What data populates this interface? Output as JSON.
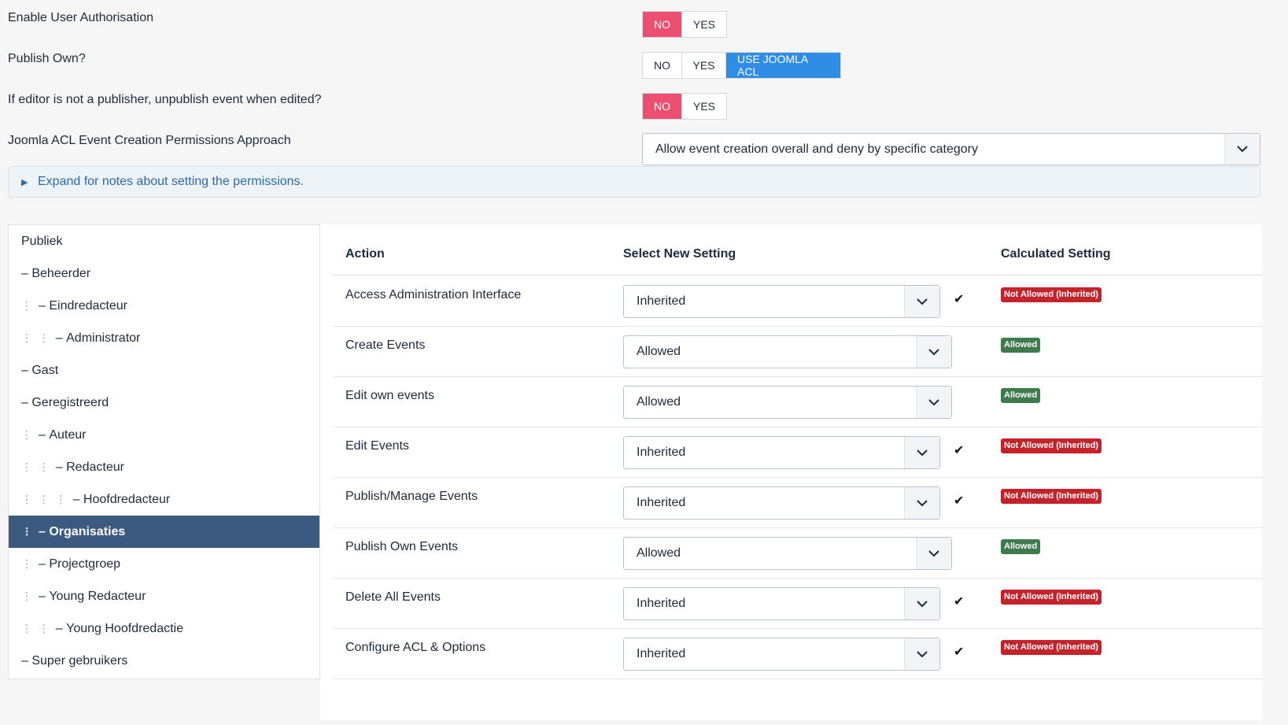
{
  "settings": {
    "enable_auth": {
      "label": "Enable User Authorisation",
      "options": [
        "NO",
        "YES"
      ],
      "selected": "NO"
    },
    "publish_own": {
      "label": "Publish Own?",
      "options": [
        "NO",
        "YES",
        "USE JOOMLA ACL"
      ],
      "selected": "USE JOOMLA ACL"
    },
    "unpublish": {
      "label": "If editor is not a publisher, unpublish event when edited?",
      "options": [
        "NO",
        "YES"
      ],
      "selected": "NO"
    },
    "acl_approach": {
      "label": "Joomla ACL Event Creation Permissions Approach",
      "value": "Allow event creation overall and deny by specific category"
    },
    "notes_link": "Expand for notes about setting the permissions."
  },
  "groups": [
    {
      "label": "Publiek",
      "prefix": "",
      "dots": ""
    },
    {
      "label": "Beheerder",
      "prefix": "– ",
      "dots": ""
    },
    {
      "label": "Eindredacteur",
      "prefix": "– ",
      "dots": "⋮"
    },
    {
      "label": "Administrator",
      "prefix": "– ",
      "dots": "⋮  ⋮"
    },
    {
      "label": "Gast",
      "prefix": "– ",
      "dots": ""
    },
    {
      "label": "Geregistreerd",
      "prefix": "– ",
      "dots": ""
    },
    {
      "label": "Auteur",
      "prefix": "– ",
      "dots": "⋮"
    },
    {
      "label": "Redacteur",
      "prefix": "– ",
      "dots": "⋮  ⋮"
    },
    {
      "label": "Hoofdredacteur",
      "prefix": "– ",
      "dots": "⋮  ⋮  ⋮"
    },
    {
      "label": "Organisaties",
      "prefix": "– ",
      "dots": "⋮",
      "selected": true
    },
    {
      "label": "Projectgroep",
      "prefix": "– ",
      "dots": "⋮"
    },
    {
      "label": "Young Redacteur",
      "prefix": "– ",
      "dots": "⋮"
    },
    {
      "label": "Young Hoofdredactie",
      "prefix": "– ",
      "dots": "⋮  ⋮"
    },
    {
      "label": "Super gebruikers",
      "prefix": "– ",
      "dots": ""
    }
  ],
  "permissions": {
    "headers": {
      "action": "Action",
      "select": "Select New Setting",
      "calculated": "Calculated Setting"
    },
    "rows": [
      {
        "action": "Access Administration Interface",
        "setting": "Inherited",
        "check": "✔",
        "calculated": "Not Allowed (Inherited)",
        "status": "deny"
      },
      {
        "action": "Create Events",
        "setting": "Allowed",
        "check": "",
        "calculated": "Allowed",
        "status": "allow"
      },
      {
        "action": "Edit own events",
        "setting": "Allowed",
        "check": "",
        "calculated": "Allowed",
        "status": "allow"
      },
      {
        "action": "Edit Events",
        "setting": "Inherited",
        "check": "✔",
        "calculated": "Not Allowed (Inherited)",
        "status": "deny"
      },
      {
        "action": "Publish/Manage Events",
        "setting": "Inherited",
        "check": "✔",
        "calculated": "Not Allowed (Inherited)",
        "status": "deny"
      },
      {
        "action": "Publish Own Events",
        "setting": "Allowed",
        "check": "",
        "calculated": "Allowed",
        "status": "allow"
      },
      {
        "action": "Delete All Events",
        "setting": "Inherited",
        "check": "✔",
        "calculated": "Not Allowed (Inherited)",
        "status": "deny"
      },
      {
        "action": "Configure ACL & Options",
        "setting": "Inherited",
        "check": "✔",
        "calculated": "Not Allowed (Inherited)",
        "status": "deny"
      }
    ]
  },
  "colors": {
    "no_active": "#ec4f6f",
    "acl_active": "#2f8de6",
    "selected_group": "#3c5a80",
    "deny_badge": "#c5232b",
    "allow_badge": "#3f7a4c"
  }
}
